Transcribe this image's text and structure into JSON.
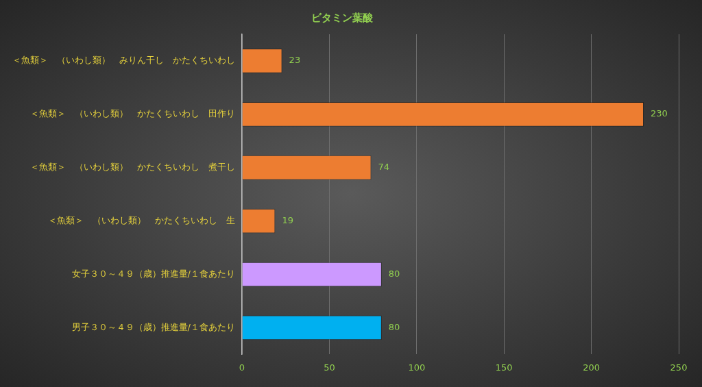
{
  "chart_data": {
    "type": "bar",
    "orientation": "horizontal",
    "title": "ビタミン葉酸",
    "categories": [
      "＜魚類＞　（いわし類）　みりん干し　かたくちいわし",
      "＜魚類＞　（いわし類）　かたくちいわし　田作り",
      "＜魚類＞　（いわし類）　かたくちいわし　煮干し",
      "＜魚類＞　（いわし類）　かたくちいわし　生",
      "女子３０～４９（歳）推進量/１食あたり",
      "男子３０～４９（歳）推進量/１食あたり"
    ],
    "values": [
      23,
      230,
      74,
      19,
      80,
      80
    ],
    "colors": [
      "#ed7d31",
      "#ed7d31",
      "#ed7d31",
      "#ed7d31",
      "#cc99ff",
      "#00b0f0"
    ],
    "xlim": [
      0,
      250
    ],
    "xticks": [
      0,
      50,
      100,
      150,
      200,
      250
    ],
    "grid": "x",
    "data_labels": true,
    "legend": false
  }
}
